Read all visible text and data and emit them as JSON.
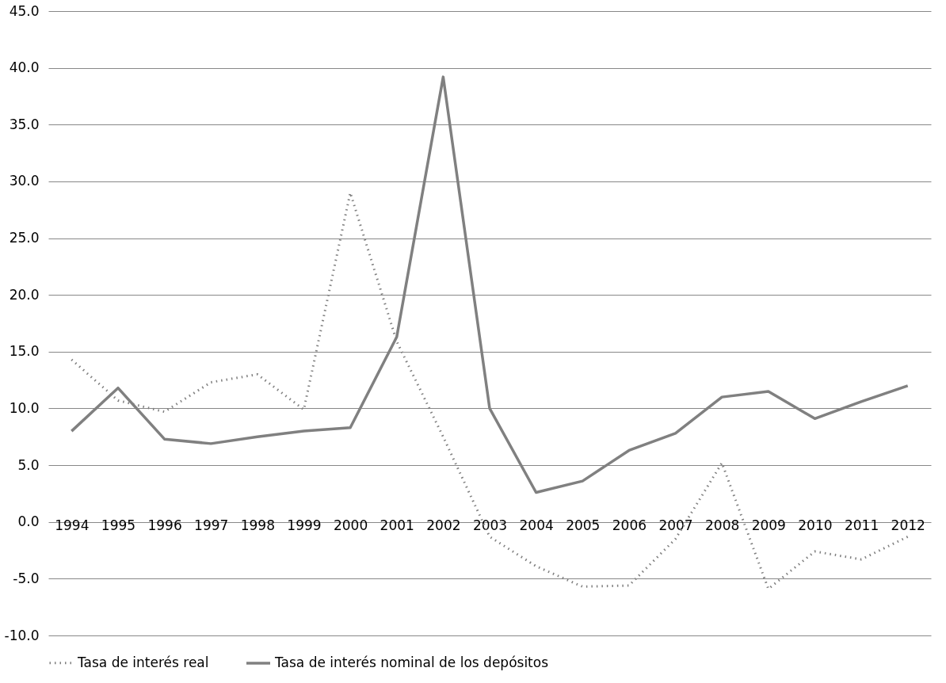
{
  "chart_data": {
    "type": "line",
    "categories": [
      "1994",
      "1995",
      "1996",
      "1997",
      "1998",
      "1999",
      "2000",
      "2001",
      "2002",
      "2003",
      "2004",
      "2005",
      "2006",
      "2007",
      "2008",
      "2009",
      "2010",
      "2011",
      "2012"
    ],
    "series": [
      {
        "name": "Tasa de interés real",
        "color": "#808080",
        "line_style": "dotted",
        "values": [
          14.3,
          10.7,
          9.7,
          12.3,
          13.0,
          9.9,
          29.0,
          15.9,
          7.5,
          -1.3,
          -3.9,
          -5.7,
          -5.6,
          -1.5,
          5.2,
          -5.9,
          -2.6,
          -3.3,
          -1.3
        ]
      },
      {
        "name": "Tasa de interés nominal de los depósitos",
        "color": "#808080",
        "line_style": "solid",
        "values": [
          8.0,
          11.8,
          7.3,
          6.9,
          7.5,
          8.0,
          8.3,
          16.3,
          39.2,
          10.0,
          2.6,
          3.6,
          6.3,
          7.8,
          11.0,
          11.5,
          9.1,
          10.6,
          12.0
        ]
      }
    ],
    "ylim": [
      -10,
      45
    ],
    "yticks": [
      {
        "value": -10,
        "label": "-10.0"
      },
      {
        "value": -5,
        "label": "-5.0"
      },
      {
        "value": 0,
        "label": "0.0"
      },
      {
        "value": 5,
        "label": "5.0"
      },
      {
        "value": 10,
        "label": "10.0"
      },
      {
        "value": 15,
        "label": "15.0"
      },
      {
        "value": 20,
        "label": "20.0"
      },
      {
        "value": 25,
        "label": "25.0"
      },
      {
        "value": 30,
        "label": "30.0"
      },
      {
        "value": 35,
        "label": "35.0"
      },
      {
        "value": 40,
        "label": "40.0"
      },
      {
        "value": 45,
        "label": "45.0"
      }
    ],
    "grid": "y",
    "legend": "bottom",
    "marker": "none"
  }
}
